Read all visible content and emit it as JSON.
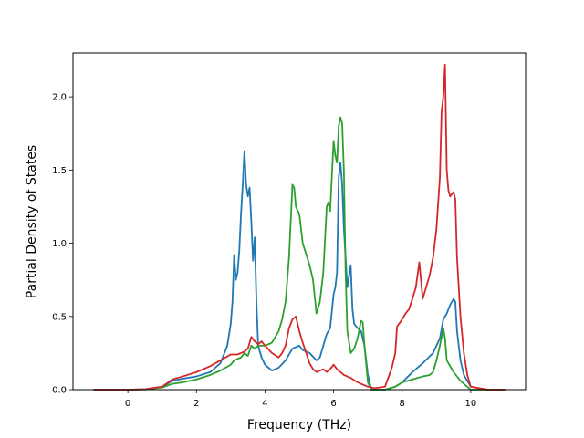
{
  "chart_data": {
    "type": "line",
    "xlabel": "Frequency (THz)",
    "ylabel": "Partial Density of States",
    "xlim": [
      -1.6,
      11.6
    ],
    "ylim": [
      0.0,
      2.3
    ],
    "xticks": [
      "0",
      "2",
      "4",
      "6",
      "8",
      "10"
    ],
    "yticks": [
      "0.0",
      "0.5",
      "1.0",
      "1.5",
      "2.0"
    ],
    "grid": false,
    "legend": "none",
    "series": [
      {
        "color": "#1f77b4",
        "points": [
          [
            -1.0,
            0.0
          ],
          [
            0.0,
            0.0
          ],
          [
            0.5,
            0.002
          ],
          [
            1.0,
            0.02
          ],
          [
            1.3,
            0.06
          ],
          [
            1.6,
            0.075
          ],
          [
            2.0,
            0.09
          ],
          [
            2.4,
            0.12
          ],
          [
            2.7,
            0.18
          ],
          [
            2.9,
            0.3
          ],
          [
            3.0,
            0.45
          ],
          [
            3.05,
            0.6
          ],
          [
            3.1,
            0.92
          ],
          [
            3.15,
            0.75
          ],
          [
            3.2,
            0.8
          ],
          [
            3.25,
            0.95
          ],
          [
            3.3,
            1.2
          ],
          [
            3.35,
            1.4
          ],
          [
            3.4,
            1.63
          ],
          [
            3.45,
            1.4
          ],
          [
            3.5,
            1.32
          ],
          [
            3.55,
            1.38
          ],
          [
            3.6,
            1.15
          ],
          [
            3.65,
            0.88
          ],
          [
            3.7,
            1.04
          ],
          [
            3.75,
            0.6
          ],
          [
            3.8,
            0.3
          ],
          [
            3.9,
            0.22
          ],
          [
            4.0,
            0.17
          ],
          [
            4.2,
            0.13
          ],
          [
            4.4,
            0.15
          ],
          [
            4.6,
            0.2
          ],
          [
            4.8,
            0.28
          ],
          [
            5.0,
            0.3
          ],
          [
            5.1,
            0.27
          ],
          [
            5.3,
            0.25
          ],
          [
            5.5,
            0.2
          ],
          [
            5.6,
            0.22
          ],
          [
            5.7,
            0.3
          ],
          [
            5.8,
            0.38
          ],
          [
            5.9,
            0.42
          ],
          [
            6.0,
            0.65
          ],
          [
            6.05,
            0.7
          ],
          [
            6.1,
            0.8
          ],
          [
            6.15,
            1.45
          ],
          [
            6.2,
            1.55
          ],
          [
            6.25,
            1.4
          ],
          [
            6.3,
            1.1
          ],
          [
            6.35,
            0.9
          ],
          [
            6.4,
            0.7
          ],
          [
            6.5,
            0.85
          ],
          [
            6.55,
            0.55
          ],
          [
            6.6,
            0.45
          ],
          [
            6.7,
            0.42
          ],
          [
            6.8,
            0.4
          ],
          [
            6.9,
            0.3
          ],
          [
            7.0,
            0.1
          ],
          [
            7.1,
            0.0
          ],
          [
            7.5,
            0.0
          ],
          [
            7.8,
            0.02
          ],
          [
            8.0,
            0.05
          ],
          [
            8.3,
            0.12
          ],
          [
            8.6,
            0.18
          ],
          [
            8.9,
            0.25
          ],
          [
            9.1,
            0.35
          ],
          [
            9.2,
            0.48
          ],
          [
            9.3,
            0.52
          ],
          [
            9.4,
            0.58
          ],
          [
            9.5,
            0.62
          ],
          [
            9.55,
            0.6
          ],
          [
            9.6,
            0.4
          ],
          [
            9.7,
            0.2
          ],
          [
            9.8,
            0.1
          ],
          [
            10.0,
            0.02
          ],
          [
            10.5,
            0.0
          ],
          [
            11.0,
            0.0
          ]
        ]
      },
      {
        "color": "#2ca02c",
        "points": [
          [
            -1.0,
            0.0
          ],
          [
            0.0,
            0.0
          ],
          [
            0.5,
            0.002
          ],
          [
            1.0,
            0.015
          ],
          [
            1.3,
            0.04
          ],
          [
            1.6,
            0.05
          ],
          [
            2.0,
            0.07
          ],
          [
            2.4,
            0.1
          ],
          [
            2.7,
            0.13
          ],
          [
            3.0,
            0.17
          ],
          [
            3.1,
            0.2
          ],
          [
            3.3,
            0.22
          ],
          [
            3.4,
            0.25
          ],
          [
            3.5,
            0.23
          ],
          [
            3.6,
            0.3
          ],
          [
            3.7,
            0.28
          ],
          [
            3.8,
            0.3
          ],
          [
            4.0,
            0.3
          ],
          [
            4.2,
            0.32
          ],
          [
            4.4,
            0.4
          ],
          [
            4.5,
            0.48
          ],
          [
            4.6,
            0.6
          ],
          [
            4.7,
            0.9
          ],
          [
            4.8,
            1.4
          ],
          [
            4.85,
            1.38
          ],
          [
            4.9,
            1.25
          ],
          [
            5.0,
            1.2
          ],
          [
            5.1,
            1.0
          ],
          [
            5.3,
            0.85
          ],
          [
            5.4,
            0.75
          ],
          [
            5.5,
            0.52
          ],
          [
            5.6,
            0.6
          ],
          [
            5.7,
            0.8
          ],
          [
            5.8,
            1.25
          ],
          [
            5.85,
            1.28
          ],
          [
            5.9,
            1.22
          ],
          [
            6.0,
            1.7
          ],
          [
            6.05,
            1.6
          ],
          [
            6.1,
            1.55
          ],
          [
            6.15,
            1.8
          ],
          [
            6.2,
            1.86
          ],
          [
            6.25,
            1.82
          ],
          [
            6.3,
            1.5
          ],
          [
            6.35,
            0.8
          ],
          [
            6.4,
            0.4
          ],
          [
            6.5,
            0.25
          ],
          [
            6.6,
            0.28
          ],
          [
            6.7,
            0.35
          ],
          [
            6.8,
            0.47
          ],
          [
            6.85,
            0.46
          ],
          [
            6.9,
            0.3
          ],
          [
            7.0,
            0.05
          ],
          [
            7.1,
            0.0
          ],
          [
            7.5,
            0.0
          ],
          [
            7.8,
            0.02
          ],
          [
            8.0,
            0.05
          ],
          [
            8.3,
            0.07
          ],
          [
            8.6,
            0.09
          ],
          [
            8.8,
            0.1
          ],
          [
            8.9,
            0.12
          ],
          [
            9.0,
            0.2
          ],
          [
            9.1,
            0.3
          ],
          [
            9.2,
            0.42
          ],
          [
            9.25,
            0.35
          ],
          [
            9.3,
            0.2
          ],
          [
            9.5,
            0.12
          ],
          [
            9.7,
            0.06
          ],
          [
            10.0,
            0.0
          ],
          [
            10.5,
            0.0
          ],
          [
            11.0,
            0.0
          ]
        ]
      },
      {
        "color": "#d62728",
        "points": [
          [
            -1.0,
            0.0
          ],
          [
            0.0,
            0.0
          ],
          [
            0.5,
            0.003
          ],
          [
            1.0,
            0.02
          ],
          [
            1.3,
            0.07
          ],
          [
            1.6,
            0.09
          ],
          [
            2.0,
            0.12
          ],
          [
            2.4,
            0.16
          ],
          [
            2.7,
            0.2
          ],
          [
            3.0,
            0.24
          ],
          [
            3.2,
            0.24
          ],
          [
            3.4,
            0.26
          ],
          [
            3.5,
            0.28
          ],
          [
            3.6,
            0.36
          ],
          [
            3.7,
            0.33
          ],
          [
            3.8,
            0.31
          ],
          [
            3.9,
            0.33
          ],
          [
            4.0,
            0.3
          ],
          [
            4.2,
            0.25
          ],
          [
            4.4,
            0.22
          ],
          [
            4.5,
            0.25
          ],
          [
            4.6,
            0.3
          ],
          [
            4.7,
            0.42
          ],
          [
            4.8,
            0.48
          ],
          [
            4.9,
            0.5
          ],
          [
            5.0,
            0.4
          ],
          [
            5.1,
            0.32
          ],
          [
            5.2,
            0.25
          ],
          [
            5.3,
            0.18
          ],
          [
            5.4,
            0.14
          ],
          [
            5.5,
            0.12
          ],
          [
            5.7,
            0.14
          ],
          [
            5.8,
            0.12
          ],
          [
            5.9,
            0.14
          ],
          [
            6.0,
            0.17
          ],
          [
            6.1,
            0.14
          ],
          [
            6.3,
            0.1
          ],
          [
            6.5,
            0.08
          ],
          [
            6.7,
            0.05
          ],
          [
            6.9,
            0.03
          ],
          [
            7.0,
            0.02
          ],
          [
            7.2,
            0.01
          ],
          [
            7.5,
            0.02
          ],
          [
            7.7,
            0.15
          ],
          [
            7.8,
            0.25
          ],
          [
            7.85,
            0.43
          ],
          [
            8.0,
            0.48
          ],
          [
            8.1,
            0.52
          ],
          [
            8.2,
            0.55
          ],
          [
            8.3,
            0.62
          ],
          [
            8.4,
            0.7
          ],
          [
            8.5,
            0.87
          ],
          [
            8.6,
            0.62
          ],
          [
            8.7,
            0.7
          ],
          [
            8.8,
            0.78
          ],
          [
            8.9,
            0.9
          ],
          [
            9.0,
            1.1
          ],
          [
            9.1,
            1.45
          ],
          [
            9.15,
            1.9
          ],
          [
            9.2,
            2.0
          ],
          [
            9.25,
            2.22
          ],
          [
            9.3,
            1.5
          ],
          [
            9.35,
            1.36
          ],
          [
            9.4,
            1.32
          ],
          [
            9.5,
            1.35
          ],
          [
            9.55,
            1.3
          ],
          [
            9.6,
            0.9
          ],
          [
            9.7,
            0.5
          ],
          [
            9.8,
            0.25
          ],
          [
            9.9,
            0.1
          ],
          [
            10.0,
            0.02
          ],
          [
            10.5,
            0.0
          ],
          [
            11.0,
            0.0
          ]
        ]
      }
    ]
  }
}
